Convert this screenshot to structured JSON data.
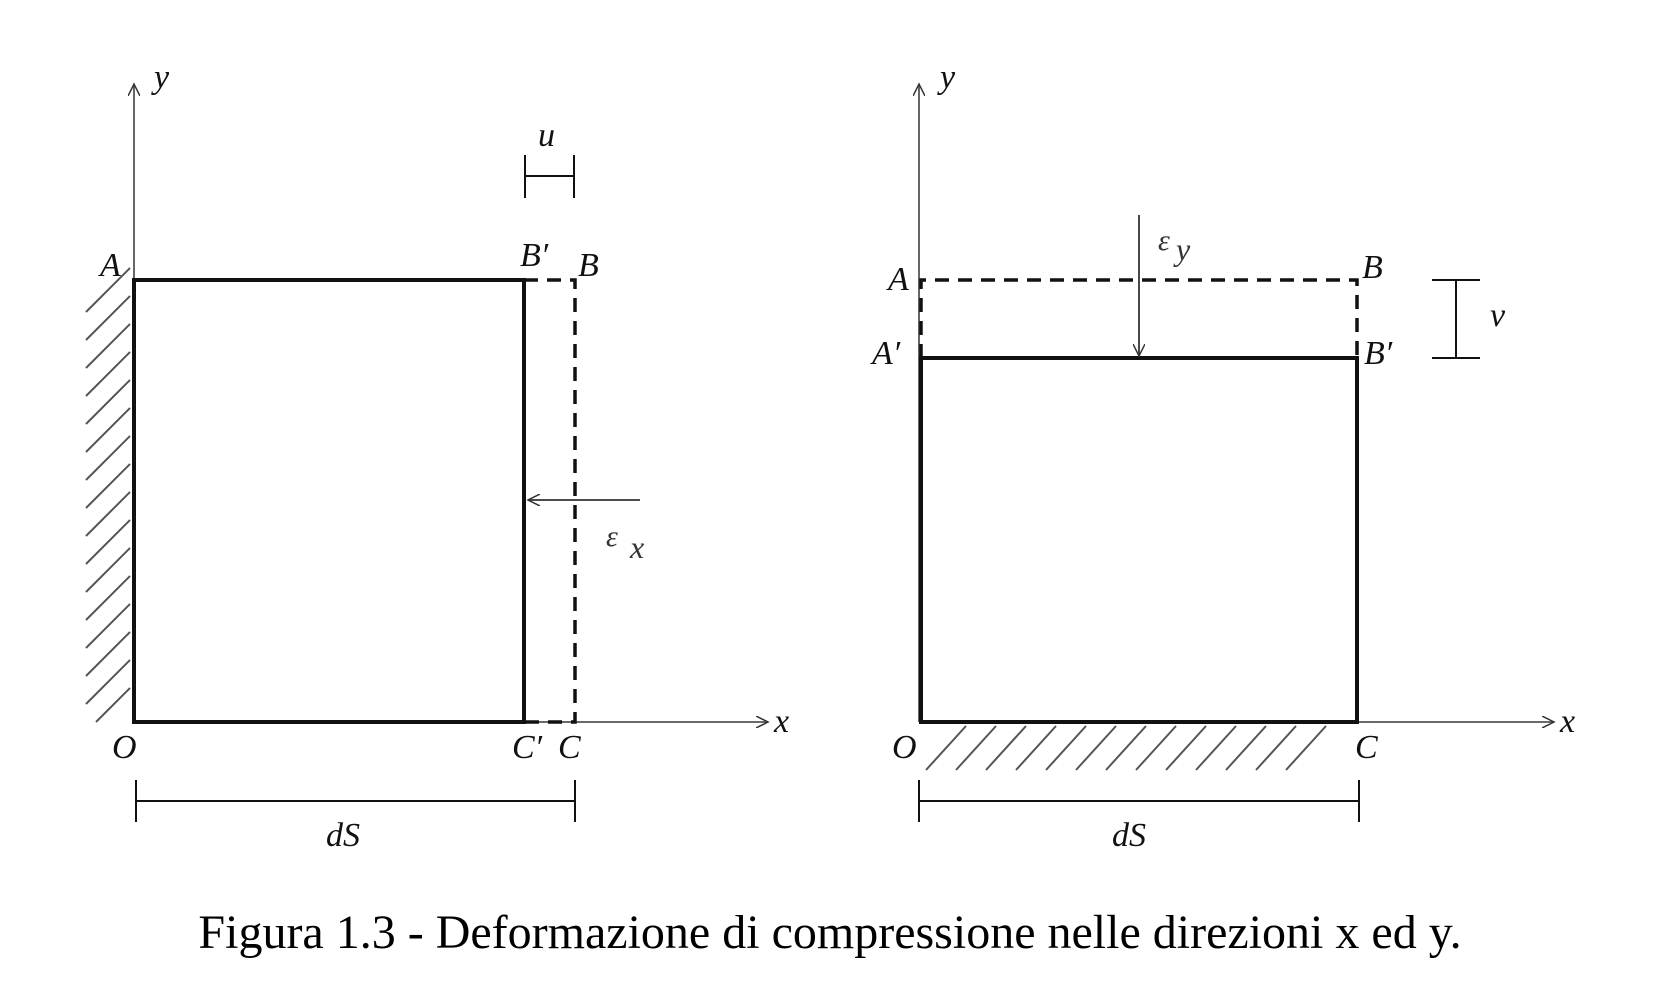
{
  "left_diagram": {
    "labels": {
      "y_axis": "y",
      "x_axis": "x",
      "A": "A",
      "B_prime": "B′",
      "B": "B",
      "O": "O",
      "C_prime": "C′",
      "C": "C",
      "u": "u",
      "eps_symbol": "ε",
      "eps_sub": "x",
      "dS": "dS"
    }
  },
  "right_diagram": {
    "labels": {
      "y_axis": "y",
      "x_axis": "x",
      "A": "A",
      "B": "B",
      "A_prime": "A′",
      "B_prime": "B′",
      "O": "O",
      "C": "C",
      "v": "v",
      "eps_symbol": "ε",
      "eps_sub": "y",
      "dS": "dS"
    }
  },
  "caption": "Figura 1.3 - Deformazione di compressione nelle direzioni x ed y."
}
